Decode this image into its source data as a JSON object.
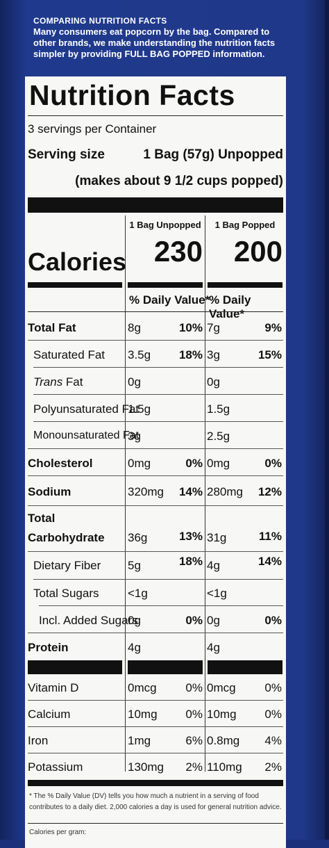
{
  "intro": {
    "heading": "COMPARING NUTRITION FACTS",
    "line1": "Many consumers eat popcorn by the bag. Compared to",
    "line2": "other brands, we make understanding the nutrition facts",
    "line3": "simpler by providing FULL BAG POPPED information."
  },
  "label": {
    "title": "Nutrition Facts",
    "servings": "3 servings per Container",
    "serving_size_label": "Serving size",
    "serving_size_value": "1 Bag (57g) Unpopped",
    "serving_size_note": "(makes about 9 1/2 cups popped)",
    "col_a": "1 Bag Unpopped",
    "col_b": "1 Bag Popped",
    "calories_label": "Calories",
    "calories_a": "230",
    "calories_b": "200",
    "dv_header": "% Daily Value*",
    "rows": [
      {
        "name": "Total Fat",
        "a": "8g",
        "ap": "10%",
        "b": "7g",
        "bp": "9%"
      },
      {
        "name": "Saturated Fat",
        "a": "3.5g",
        "ap": "18%",
        "b": "3g",
        "bp": "15%"
      },
      {
        "name_i": "Trans",
        "name_rest": " Fat",
        "a": "0g",
        "b": "0g"
      },
      {
        "name": "Polyunsaturated Fat",
        "a": "1.5g",
        "b": "1.5g"
      },
      {
        "name": "Monounsaturated Fat",
        "a": "3g",
        "b": "2.5g"
      },
      {
        "name": "Cholesterol",
        "a": "0mg",
        "ap": "0%",
        "b": "0mg",
        "bp": "0%"
      },
      {
        "name": "Sodium",
        "a": "320mg",
        "ap": "14%",
        "b": "280mg",
        "bp": "12%"
      },
      {
        "name1": "Total",
        "name2": "Carbohydrate",
        "a": "36g",
        "ap": "13%",
        "b": "31g",
        "bp": "11%"
      },
      {
        "name": "Dietary Fiber",
        "a": "5g",
        "ap": "18%",
        "b": "4g",
        "bp": "14%"
      },
      {
        "name": "Total Sugars",
        "a": "<1g",
        "b": "<1g"
      },
      {
        "name": "Incl. Added Sugars",
        "a": "0g",
        "ap": "0%",
        "b": "0g",
        "bp": "0%"
      },
      {
        "name": "Protein",
        "a": "4g",
        "b": "4g"
      },
      {
        "name": "Vitamin D",
        "a": "0mcg",
        "ap": "0%",
        "b": "0mcg",
        "bp": "0%"
      },
      {
        "name": "Calcium",
        "a": "10mg",
        "ap": "0%",
        "b": "10mg",
        "bp": "0%"
      },
      {
        "name": "Iron",
        "a": "1mg",
        "ap": "6%",
        "b": "0.8mg",
        "bp": "4%"
      },
      {
        "name": "Potassium",
        "a": "130mg",
        "ap": "2%",
        "b": "110mg",
        "bp": "2%"
      }
    ],
    "footnote1": "* The % Daily Value (DV) tells you how much a nutrient in a serving of food",
    "footnote2": "contributes to a daily diet. 2,000 calories a day is used for general nutrition advice.",
    "footnote3": "Calories per gram:"
  }
}
